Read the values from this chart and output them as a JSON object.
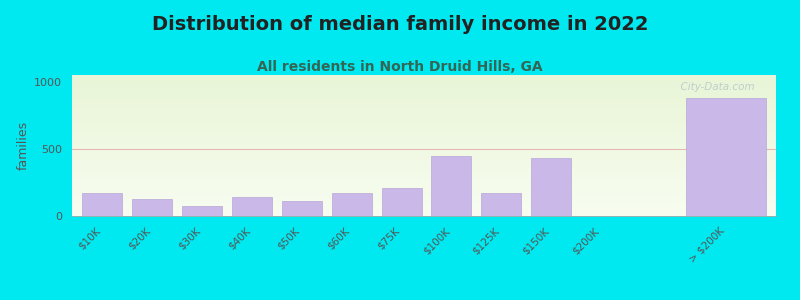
{
  "title": "Distribution of median family income in 2022",
  "subtitle": "All residents in North Druid Hills, GA",
  "ylabel": "families",
  "categories": [
    "$10K",
    "$20K",
    "$30K",
    "$40K",
    "$50K",
    "$60K",
    "$75K",
    "$100K",
    "$125K",
    "$150K",
    "$200K",
    "> $200K"
  ],
  "values": [
    175,
    130,
    75,
    140,
    115,
    175,
    210,
    450,
    175,
    430,
    0,
    880
  ],
  "bar_color": "#c9b8e8",
  "bar_edgecolor": "#b8a8d8",
  "background_color": "#00e8f0",
  "ylim": [
    0,
    1050
  ],
  "yticks": [
    0,
    500,
    1000
  ],
  "title_fontsize": 14,
  "subtitle_fontsize": 10,
  "ylabel_fontsize": 9,
  "title_color": "#222222",
  "subtitle_color": "#336655",
  "watermark": "  City-Data.com",
  "hline_color": "#e8b0b0",
  "hline_y": 500
}
